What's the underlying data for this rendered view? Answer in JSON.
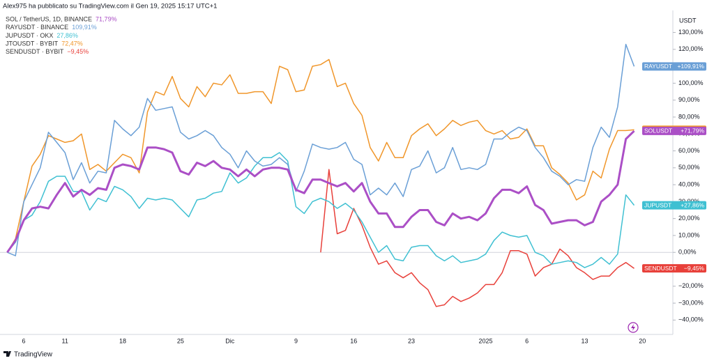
{
  "header": "Alex975 ha pubblicato su TradingView.com il Gen 19, 2025 15:17 UTC+1",
  "footer": "TradingView",
  "chart_data": {
    "type": "line",
    "y_axis_label": "USDT",
    "categories": [
      null,
      null,
      "6",
      null,
      null,
      null,
      null,
      "11",
      null,
      null,
      null,
      null,
      null,
      null,
      "18",
      null,
      null,
      null,
      null,
      null,
      null,
      "25",
      null,
      null,
      null,
      null,
      null,
      "Dic",
      null,
      null,
      null,
      null,
      null,
      null,
      null,
      "9",
      null,
      null,
      null,
      null,
      null,
      null,
      "16",
      null,
      null,
      null,
      null,
      null,
      null,
      "23",
      null,
      null,
      null,
      null,
      null,
      null,
      null,
      null,
      "2025",
      null,
      null,
      null,
      null,
      "6",
      null,
      null,
      null,
      null,
      null,
      null,
      "13",
      null,
      null,
      null,
      null,
      null,
      null,
      "20"
    ],
    "ylim": [
      -48.5,
      143
    ],
    "yticks": [
      {
        "value": 130,
        "label": "130,00%"
      },
      {
        "value": 120,
        "label": "120,00%"
      },
      {
        "value": 110,
        "label": "110,00%"
      },
      {
        "value": 100,
        "label": "100,00%"
      },
      {
        "value": 90,
        "label": "90,00%"
      },
      {
        "value": 80,
        "label": "80,00%"
      },
      {
        "value": 70,
        "label": "70,00%"
      },
      {
        "value": 60,
        "label": "60,00%"
      },
      {
        "value": 50,
        "label": "50,00%"
      },
      {
        "value": 40,
        "label": "40,00%"
      },
      {
        "value": 30,
        "label": "30,00%"
      },
      {
        "value": 20,
        "label": "20,00%"
      },
      {
        "value": 10,
        "label": "10,00%"
      },
      {
        "value": 0,
        "label": "0,00%"
      },
      {
        "value": -10,
        "label": "−10,00%"
      },
      {
        "value": -20,
        "label": "−20,00%"
      },
      {
        "value": -30,
        "label": "−30,00%"
      },
      {
        "value": -40,
        "label": "−40,00%"
      }
    ],
    "grid": false,
    "series": [
      {
        "name": "SOL / TetherUS, 1D, BINANCE",
        "legend_value": "71,79%",
        "symbol": "SOLUSDT",
        "last_label": "+71,79%",
        "color": "#ab4fc6",
        "line_width": 3,
        "values": [
          0,
          7,
          19,
          26,
          27,
          26,
          34,
          41,
          33,
          37,
          34,
          38,
          37,
          50,
          52,
          51,
          49,
          62,
          62,
          61,
          59,
          48,
          46,
          53,
          51,
          54,
          50,
          49,
          45,
          49,
          45,
          49,
          50,
          50,
          49,
          37,
          35,
          43,
          43,
          41,
          39,
          41,
          36,
          41,
          30,
          23,
          23,
          15,
          15,
          21,
          25,
          25,
          18,
          16,
          23,
          20,
          21,
          19,
          23,
          32,
          37,
          37,
          35,
          39,
          28,
          25,
          17,
          18,
          19,
          19,
          16,
          18,
          30,
          34,
          40,
          67,
          71.79,
          null
        ]
      },
      {
        "name": "RAYUSDT · BINANCE",
        "legend_value": "109,91%",
        "symbol": "RAYUSDT",
        "last_label": "+109,91%",
        "color": "#6a9fd6",
        "line_width": 1.5,
        "values": [
          0,
          -2,
          30,
          40,
          50,
          71,
          65,
          59,
          43,
          53,
          41,
          48,
          47,
          78,
          73,
          69,
          74,
          91,
          84,
          85,
          86,
          71,
          67,
          69,
          72,
          69,
          62,
          58,
          50,
          60,
          54,
          51,
          52,
          56,
          52,
          36,
          48,
          64,
          62,
          61,
          62,
          65,
          55,
          52,
          34,
          38,
          34,
          41,
          33,
          49,
          51,
          60,
          47,
          50,
          62,
          49,
          50,
          49,
          52,
          67,
          67,
          71,
          74,
          72,
          62,
          56,
          48,
          45,
          40,
          43,
          42,
          62,
          74,
          68,
          86,
          123,
          109.91,
          null
        ]
      },
      {
        "name": "JUPUSDT · OKX",
        "legend_value": "27,86%",
        "symbol": "JUPUSDT",
        "last_label": "+27,86%",
        "color": "#3fc0d2",
        "line_width": 1.5,
        "values": [
          0,
          6,
          19,
          22,
          30,
          42,
          45,
          45,
          36,
          36,
          25,
          32,
          30,
          39,
          37,
          33,
          26,
          32,
          31,
          32,
          31,
          26,
          21,
          31,
          32,
          35,
          36,
          47,
          41,
          44,
          51,
          56,
          56,
          59,
          54,
          27,
          23,
          30,
          32,
          30,
          26,
          29,
          25,
          18,
          9,
          0,
          4,
          -4,
          -5,
          3,
          4,
          4,
          -2,
          -5,
          -2,
          -6,
          -5,
          -4,
          -1,
          7,
          12,
          10,
          9,
          10,
          0,
          -2,
          -7,
          -6,
          -5,
          -6,
          -9,
          -7,
          -3,
          -7,
          -1,
          34,
          27.86,
          null
        ]
      },
      {
        "name": "JTOUSDT · BYBIT",
        "legend_value": "72,47%",
        "symbol": "JTOUSDT",
        "last_label": "+72,47%",
        "color": "#f0962a",
        "line_width": 1.5,
        "values": [
          0,
          8,
          30,
          51,
          58,
          69,
          67,
          65,
          66,
          70,
          49,
          52,
          48,
          53,
          58,
          56,
          47,
          83,
          95,
          93,
          104,
          91,
          86,
          98,
          92,
          100,
          99,
          105,
          94,
          94,
          95,
          95,
          88,
          110,
          108,
          95,
          96,
          110,
          111,
          114,
          98,
          100,
          88,
          81,
          62,
          54,
          65,
          56,
          56,
          69,
          73,
          76,
          69,
          73,
          78,
          75,
          77,
          78,
          72,
          70,
          72,
          67,
          68,
          73,
          63,
          63,
          50,
          46,
          41,
          31,
          34,
          48,
          44,
          61,
          72,
          72,
          72.47,
          null
        ]
      },
      {
        "name": "SENDUSDT · BYBIT",
        "legend_value": "−9,45%",
        "symbol": "SENDUSDT",
        "last_label": "−9,45%",
        "color": "#e8403a",
        "line_width": 1.5,
        "values": [
          null,
          null,
          null,
          null,
          null,
          null,
          null,
          null,
          null,
          null,
          null,
          null,
          null,
          null,
          null,
          null,
          null,
          null,
          null,
          null,
          null,
          null,
          null,
          null,
          null,
          null,
          null,
          null,
          null,
          null,
          null,
          null,
          null,
          null,
          null,
          null,
          null,
          null,
          0,
          49,
          11,
          13,
          26,
          16,
          3,
          -7,
          -5,
          -12,
          -15,
          -12,
          -18,
          -22,
          -32,
          -31,
          -26,
          -29,
          -27,
          -24,
          -19,
          -19,
          -12,
          1,
          1,
          -1,
          -14,
          -9,
          -7,
          2,
          -2,
          -9,
          -12,
          -16,
          -14,
          -14,
          -9,
          -6,
          -9.45,
          null
        ]
      }
    ]
  }
}
